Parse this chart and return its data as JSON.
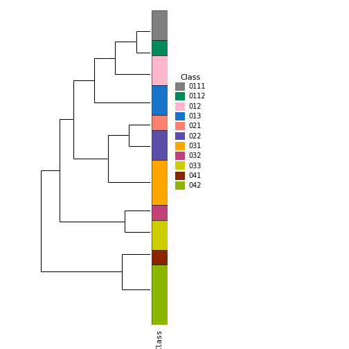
{
  "classes": [
    "0111",
    "0112",
    "012",
    "013",
    "021",
    "022",
    "031",
    "032",
    "033",
    "041",
    "042"
  ],
  "colors": {
    "0111": "#7f7f7f",
    "0112": "#008B57",
    "012": "#FFB6C8",
    "013": "#1874CD",
    "021": "#FA8072",
    "022": "#5B4EA8",
    "031": "#FFA500",
    "032": "#C0407A",
    "033": "#CCCC00",
    "041": "#8B2500",
    "042": "#8DB600"
  },
  "leaf_order": [
    "0111",
    "0112",
    "012",
    "013",
    "021",
    "022",
    "031",
    "032",
    "033",
    "041",
    "042"
  ],
  "leaf_heights": [
    2,
    1,
    2,
    2,
    1,
    2,
    3,
    1,
    2,
    1,
    4
  ],
  "background_color": "#ffffff",
  "xlabel": "Class",
  "legend_title": "Class"
}
